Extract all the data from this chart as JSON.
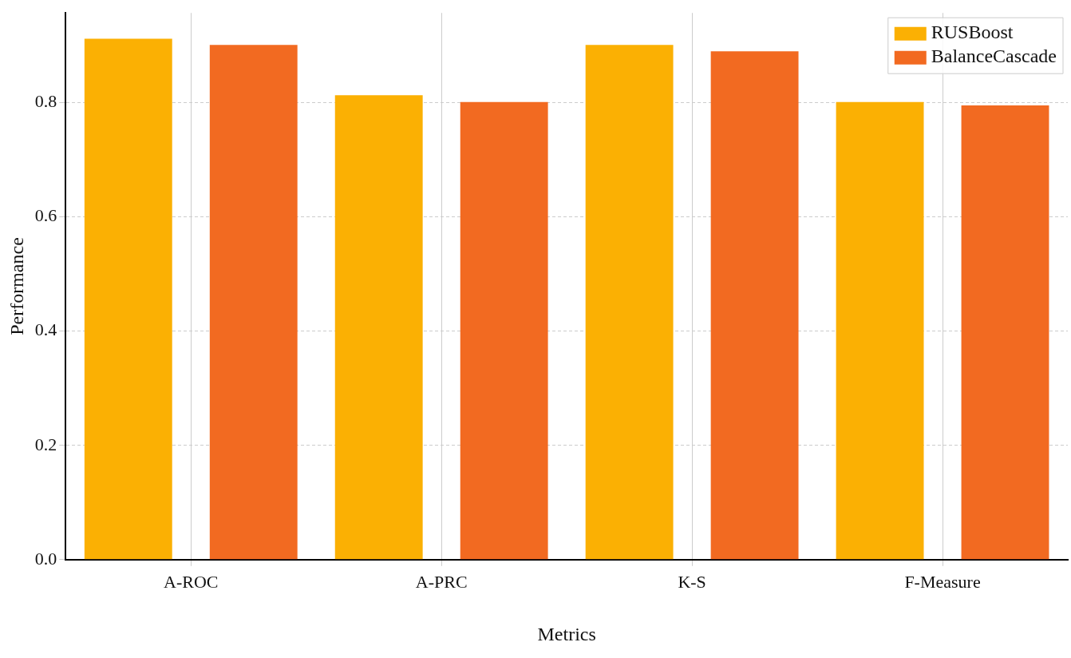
{
  "chart_data": {
    "type": "bar",
    "xlabel": "Metrics",
    "ylabel": "Performance",
    "categories": [
      "A-ROC",
      "A-PRC",
      "K-S",
      "F-Measure"
    ],
    "series": [
      {
        "name": "RUSBoost",
        "color": "#fbb003",
        "values": [
          0.912,
          0.813,
          0.901,
          0.801
        ]
      },
      {
        "name": "BalanceCascade",
        "color": "#f26a21",
        "values": [
          0.901,
          0.801,
          0.89,
          0.795
        ]
      }
    ],
    "ylim": [
      0,
      0.957
    ],
    "yticks": [
      {
        "value": 0,
        "label": "0.0"
      },
      {
        "value": 0.2,
        "label": "0.2"
      },
      {
        "value": 0.4,
        "label": "0.4"
      },
      {
        "value": 0.6,
        "label": "0.6"
      },
      {
        "value": 0.8,
        "label": "0.8"
      }
    ],
    "grid": true,
    "legend": "top right"
  }
}
